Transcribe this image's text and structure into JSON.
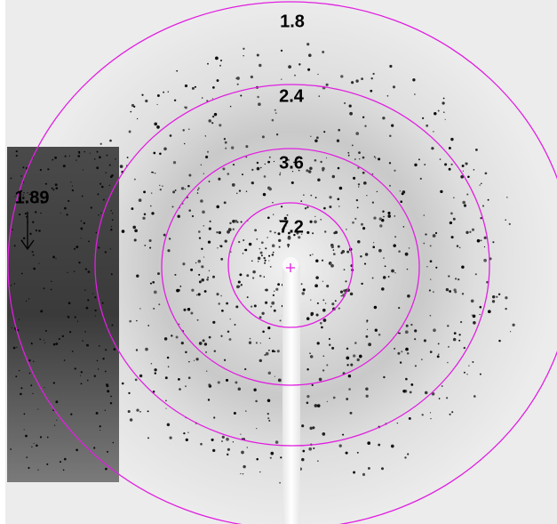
{
  "ring_labels": [
    "1.8",
    "2.4",
    "3.6",
    "7.2"
  ],
  "inset_label": "1.89"
}
